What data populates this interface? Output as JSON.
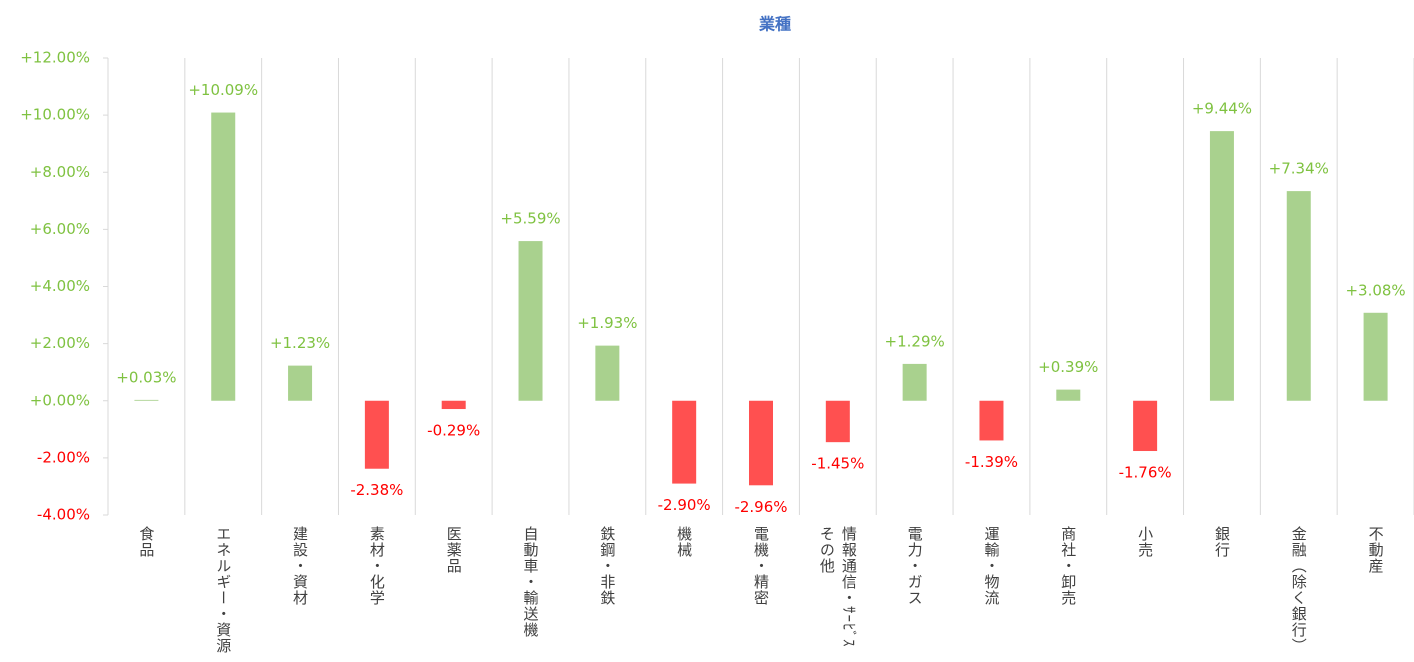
{
  "chart_data": {
    "type": "bar",
    "title": "業種",
    "categories": [
      "食品",
      "エネルギー・資源",
      "建設・資材",
      "素材・化学",
      "医薬品",
      "自動車・輸送機",
      "鉄鋼・非鉄",
      "機械",
      "電機・精密",
      "情報通信・ｻｰﾋﾞｽその他",
      "電力・ガス",
      "運輸・物流",
      "商社・卸売",
      "小売",
      "銀行",
      "金融（除く銀行）",
      "不動産"
    ],
    "values": [
      0.03,
      10.09,
      1.23,
      -2.38,
      -0.29,
      5.59,
      1.93,
      -2.9,
      -2.96,
      -1.45,
      1.29,
      -1.39,
      0.39,
      -1.76,
      9.44,
      7.34,
      3.08
    ],
    "value_labels": [
      "+0.03%",
      "+10.09%",
      "+1.23%",
      "-2.38%",
      "-0.29%",
      "+5.59%",
      "+1.93%",
      "-2.90%",
      "-2.96%",
      "-1.45%",
      "+1.29%",
      "-1.39%",
      "+0.39%",
      "-1.76%",
      "+9.44%",
      "+7.34%",
      "+3.08%"
    ],
    "positive_color": "#a9d18e",
    "negative_color": "#ff5050",
    "positive_label_color": "#7fc241",
    "negative_label_color": "#ff0000",
    "ylim": [
      -4,
      12
    ],
    "yticks": [
      {
        "value": -4,
        "label": "-4.00%"
      },
      {
        "value": -2,
        "label": "-2.00%"
      },
      {
        "value": 0,
        "label": "+0.00%"
      },
      {
        "value": 2,
        "label": "+2.00%"
      },
      {
        "value": 4,
        "label": "+4.00%"
      },
      {
        "value": 6,
        "label": "+6.00%"
      },
      {
        "value": 8,
        "label": "+8.00%"
      },
      {
        "value": 10,
        "label": "+10.00%"
      },
      {
        "value": 12,
        "label": "+12.00%"
      }
    ]
  }
}
